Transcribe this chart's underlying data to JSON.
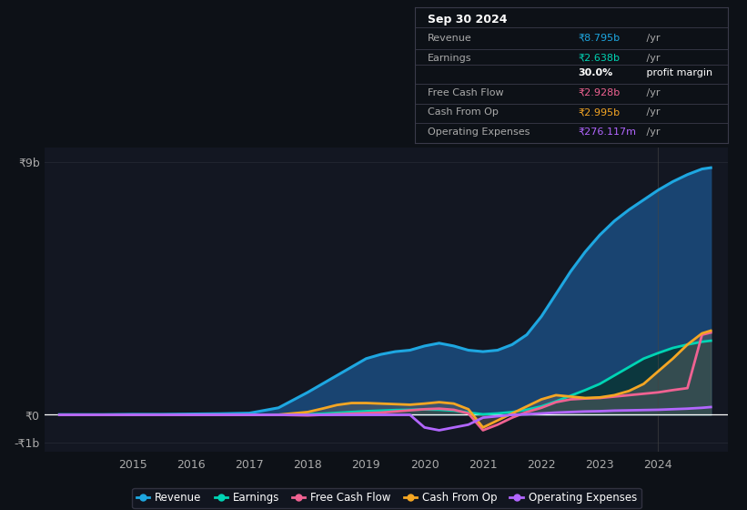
{
  "bg_color": "#0d1117",
  "plot_bg_color": "#131722",
  "grid_color": "#2a2e39",
  "ylim": [
    -1300000000.0,
    9500000000.0
  ],
  "years": [
    2013.75,
    2014.0,
    2014.5,
    2015.0,
    2015.5,
    2016.0,
    2016.5,
    2017.0,
    2017.5,
    2018.0,
    2018.25,
    2018.5,
    2018.75,
    2019.0,
    2019.25,
    2019.5,
    2019.75,
    2020.0,
    2020.25,
    2020.5,
    2020.75,
    2021.0,
    2021.25,
    2021.5,
    2021.75,
    2022.0,
    2022.25,
    2022.5,
    2022.75,
    2023.0,
    2023.25,
    2023.5,
    2023.75,
    2024.0,
    2024.25,
    2024.5,
    2024.75,
    2024.9
  ],
  "revenue": [
    10000000.0,
    10000000.0,
    10000000.0,
    20000000.0,
    20000000.0,
    30000000.0,
    40000000.0,
    60000000.0,
    250000000.0,
    800000000.0,
    1100000000.0,
    1400000000.0,
    1700000000.0,
    2000000000.0,
    2150000000.0,
    2250000000.0,
    2300000000.0,
    2450000000.0,
    2550000000.0,
    2450000000.0,
    2300000000.0,
    2250000000.0,
    2300000000.0,
    2500000000.0,
    2850000000.0,
    3500000000.0,
    4300000000.0,
    5100000000.0,
    5800000000.0,
    6400000000.0,
    6900000000.0,
    7300000000.0,
    7650000000.0,
    8000000000.0,
    8300000000.0,
    8550000000.0,
    8750000000.0,
    8795000000.0
  ],
  "earnings": [
    0.0,
    0.0,
    0.0,
    0.0,
    0.0,
    0.0,
    0.0,
    0.0,
    0.0,
    20000000.0,
    40000000.0,
    70000000.0,
    100000000.0,
    130000000.0,
    150000000.0,
    170000000.0,
    180000000.0,
    190000000.0,
    180000000.0,
    150000000.0,
    80000000.0,
    20000000.0,
    50000000.0,
    100000000.0,
    180000000.0,
    300000000.0,
    480000000.0,
    680000000.0,
    880000000.0,
    1100000000.0,
    1400000000.0,
    1700000000.0,
    2000000000.0,
    2200000000.0,
    2380000000.0,
    2500000000.0,
    2600000000.0,
    2638000000.0
  ],
  "free_cash_flow": [
    0.0,
    0.0,
    0.0,
    0.0,
    0.0,
    0.0,
    0.0,
    0.0,
    0.0,
    -20000000.0,
    0.0,
    20000000.0,
    40000000.0,
    60000000.0,
    80000000.0,
    120000000.0,
    160000000.0,
    200000000.0,
    220000000.0,
    180000000.0,
    50000000.0,
    -550000000.0,
    -350000000.0,
    -100000000.0,
    100000000.0,
    250000000.0,
    450000000.0,
    550000000.0,
    580000000.0,
    600000000.0,
    650000000.0,
    700000000.0,
    750000000.0,
    800000000.0,
    880000000.0,
    950000000.0,
    2850000000.0,
    2928000000.0
  ],
  "cash_from_op": [
    0.0,
    0.0,
    0.0,
    0.0,
    0.0,
    0.0,
    0.0,
    0.0,
    5000000.0,
    100000000.0,
    220000000.0,
    350000000.0,
    420000000.0,
    420000000.0,
    400000000.0,
    380000000.0,
    360000000.0,
    400000000.0,
    450000000.0,
    400000000.0,
    200000000.0,
    -450000000.0,
    -200000000.0,
    50000000.0,
    300000000.0,
    550000000.0,
    700000000.0,
    650000000.0,
    600000000.0,
    620000000.0,
    700000000.0,
    850000000.0,
    1100000000.0,
    1550000000.0,
    2000000000.0,
    2500000000.0,
    2900000000.0,
    2995000000.0
  ],
  "op_expenses": [
    0.0,
    0.0,
    0.0,
    0.0,
    0.0,
    0.0,
    0.0,
    0.0,
    0.0,
    0.0,
    0.0,
    0.0,
    0.0,
    0.0,
    0.0,
    0.0,
    0.0,
    -450000000.0,
    -550000000.0,
    -450000000.0,
    -350000000.0,
    -100000000.0,
    -50000000.0,
    0.0,
    20000000.0,
    50000000.0,
    80000000.0,
    100000000.0,
    120000000.0,
    130000000.0,
    150000000.0,
    160000000.0,
    170000000.0,
    180000000.0,
    200000000.0,
    220000000.0,
    250000000.0,
    276000000.0
  ],
  "revenue_color": "#1ea7e1",
  "revenue_fill_color": "#1a4a7a",
  "earnings_color": "#00d4b4",
  "earnings_fill_color": "#0a3535",
  "free_cash_flow_color": "#f06292",
  "cash_from_op_color": "#f5a623",
  "op_expenses_color": "#b266ff",
  "cash_from_op_fill_color": "#555555",
  "xtick_years": [
    2015,
    2016,
    2017,
    2018,
    2019,
    2020,
    2021,
    2022,
    2023,
    2024
  ],
  "xlim": [
    2013.5,
    2025.2
  ],
  "vline_x": 2024.0,
  "info_box_title": "Sep 30 2024",
  "info_rows": [
    {
      "label": "Revenue",
      "colored": "₹8.795b",
      "rest": " /yr",
      "color": "#1ea7e1"
    },
    {
      "label": "Earnings",
      "colored": "₹2.638b",
      "rest": " /yr",
      "color": "#00d4b4"
    },
    {
      "label": "",
      "colored": "30.0%",
      "rest": " profit margin",
      "color": "#ffffff",
      "bold": true
    },
    {
      "label": "Free Cash Flow",
      "colored": "₹2.928b",
      "rest": " /yr",
      "color": "#f06292"
    },
    {
      "label": "Cash From Op",
      "colored": "₹2.995b",
      "rest": " /yr",
      "color": "#f5a623"
    },
    {
      "label": "Operating Expenses",
      "colored": "₹276.117m",
      "rest": " /yr",
      "color": "#b266ff"
    }
  ],
  "legend_items": [
    {
      "label": "Revenue",
      "color": "#1ea7e1"
    },
    {
      "label": "Earnings",
      "color": "#00d4b4"
    },
    {
      "label": "Free Cash Flow",
      "color": "#f06292"
    },
    {
      "label": "Cash From Op",
      "color": "#f5a623"
    },
    {
      "label": "Operating Expenses",
      "color": "#b266ff"
    }
  ]
}
